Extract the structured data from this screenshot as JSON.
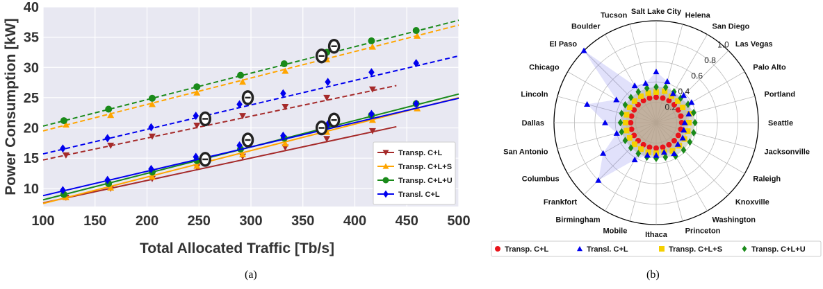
{
  "captions": {
    "a": "(a)",
    "b": "(b)"
  },
  "chart_data": [
    {
      "type": "line",
      "title": "",
      "xlabel": "Total Allocated Traffic [Tb/s]",
      "ylabel": "Power Consumption [kW]",
      "xlim": [
        100,
        500
      ],
      "ylim": [
        7,
        40
      ],
      "xticks": [
        100,
        150,
        200,
        250,
        300,
        350,
        400,
        450,
        500
      ],
      "yticks": [
        10,
        15,
        20,
        25,
        30,
        35,
        40
      ],
      "grid": true,
      "legend_position": "lower-right",
      "background": "#e8e8f2",
      "series": [
        {
          "name": "Transp. C+L",
          "color": "#a52a2a",
          "marker": "triangle-down",
          "style": "solid",
          "x": [
            100,
            440
          ],
          "y": [
            7.6,
            20.2
          ],
          "marker_x": [
            122,
            165,
            205,
            248,
            292,
            333,
            373,
            417
          ],
          "marker_y": [
            8.5,
            10.0,
            11.6,
            13.5,
            15.3,
            16.8,
            18.2,
            19.5
          ]
        },
        {
          "name": "Transp. C+L",
          "color": "#a52a2a",
          "marker": "triangle-down",
          "style": "dashed",
          "x": [
            100,
            440
          ],
          "y": [
            14.7,
            27.0
          ],
          "marker_x": [
            122,
            165,
            205,
            248,
            292,
            333,
            373,
            417
          ],
          "marker_y": [
            15.5,
            17.1,
            18.6,
            20.4,
            22.0,
            23.5,
            25.0,
            26.4
          ]
        },
        {
          "name": "Transp. C+L+S",
          "color": "#ffa500",
          "marker": "triangle-up",
          "style": "solid",
          "x": [
            100,
            500
          ],
          "y": [
            7.5,
            25.0
          ],
          "marker_x": [
            122,
            165,
            205,
            248,
            292,
            333,
            373,
            417,
            460
          ],
          "marker_y": [
            8.5,
            10.1,
            11.9,
            13.7,
            15.6,
            17.4,
            19.3,
            21.3,
            23.2
          ]
        },
        {
          "name": "Transp. C+L+S",
          "color": "#ffa500",
          "marker": "triangle-up",
          "style": "dashed",
          "x": [
            100,
            500
          ],
          "y": [
            19.5,
            37.0
          ],
          "marker_x": [
            122,
            165,
            205,
            248,
            292,
            333,
            373,
            417,
            460
          ],
          "marker_y": [
            20.5,
            22.1,
            23.9,
            25.8,
            27.6,
            29.4,
            31.3,
            33.4,
            35.2
          ]
        },
        {
          "name": "Transp. C+L+U",
          "color": "#1a8a1a",
          "marker": "circle",
          "style": "solid",
          "x": [
            100,
            500
          ],
          "y": [
            8.1,
            25.6
          ],
          "marker_x": [
            120,
            163,
            205,
            248,
            290,
            332,
            373,
            416,
            459
          ],
          "marker_y": [
            9.0,
            10.8,
            12.7,
            14.6,
            16.5,
            18.3,
            20.2,
            22.1,
            24.0
          ]
        },
        {
          "name": "Transp. C+L+U",
          "color": "#1a8a1a",
          "marker": "circle",
          "style": "dashed",
          "x": [
            100,
            500
          ],
          "y": [
            20.3,
            37.8
          ],
          "marker_x": [
            120,
            163,
            205,
            248,
            290,
            332,
            373,
            416,
            459
          ],
          "marker_y": [
            21.2,
            23.1,
            24.9,
            26.8,
            28.7,
            30.6,
            32.5,
            34.4,
            36.1
          ]
        },
        {
          "name": "Transl. C+L",
          "color": "#0000ee",
          "marker": "diamond",
          "style": "solid",
          "x": [
            100,
            500
          ],
          "y": [
            8.8,
            24.9
          ],
          "marker_x": [
            119,
            162,
            204,
            247,
            289,
            331,
            374,
            416,
            459
          ],
          "marker_y": [
            9.7,
            11.4,
            13.2,
            15.2,
            17.1,
            18.7,
            20.6,
            22.3,
            24.0
          ]
        },
        {
          "name": "Transl. C+L",
          "color": "#0000ee",
          "marker": "diamond",
          "style": "dashed",
          "x": [
            100,
            500
          ],
          "y": [
            15.7,
            31.9
          ],
          "marker_x": [
            119,
            162,
            204,
            247,
            289,
            331,
            374,
            416,
            459
          ],
          "marker_y": [
            16.6,
            18.3,
            20.1,
            22.0,
            23.9,
            25.7,
            27.6,
            29.2,
            30.7
          ]
        }
      ],
      "annotations": [
        {
          "label": "⊖",
          "x": 256,
          "y": 21.5
        },
        {
          "label": "⊖",
          "x": 297,
          "y": 25.0
        },
        {
          "label": "⊖",
          "x": 256,
          "y": 14.8
        },
        {
          "label": "⊖",
          "x": 297,
          "y": 18.0
        },
        {
          "label": "⊖",
          "x": 368,
          "y": 31.9
        },
        {
          "label": "⊖",
          "x": 380,
          "y": 33.5
        },
        {
          "label": "⊖",
          "x": 368,
          "y": 20.0
        },
        {
          "label": "⊖",
          "x": 380,
          "y": 21.3
        }
      ],
      "legend": [
        "Transp. C+L",
        "Transp. C+L+S",
        "Transp. C+L+U",
        "Transl. C+L"
      ]
    },
    {
      "type": "radar",
      "title": "",
      "categories": [
        "Seattle",
        "Portland",
        "Palo Alto",
        "Las Vegas",
        "San Diego",
        "Helena",
        "Salt Lake City",
        "Tucson",
        "Boulder",
        "El Paso",
        "Chicago",
        "Lincoln",
        "Dallas",
        "San Antonio",
        "Columbus",
        "Frankfort",
        "Birmingham",
        "Mobile",
        "Ithaca",
        "Princeton",
        "Washington",
        "Knoxville",
        "Raleigh",
        "Jacksonville"
      ],
      "rlim": [
        0,
        1.0
      ],
      "rticks": [
        0.2,
        0.4,
        0.6,
        0.8,
        1.0
      ],
      "grid": true,
      "legend_position": "bottom",
      "series": [
        {
          "name": "Transp. C+L",
          "color": "#e8141b",
          "marker": "circle",
          "values": [
            0.25,
            0.25,
            0.25,
            0.25,
            0.25,
            0.25,
            0.25,
            0.25,
            0.25,
            0.25,
            0.25,
            0.25,
            0.25,
            0.25,
            0.25,
            0.25,
            0.25,
            0.25,
            0.25,
            0.25,
            0.25,
            0.25,
            0.25,
            0.25
          ]
        },
        {
          "name": "Transl. C+L",
          "color": "#0000ee",
          "marker": "triangle-up",
          "values": [
            0.28,
            0.33,
            0.4,
            0.38,
            0.33,
            0.42,
            0.5,
            0.4,
            0.42,
            1.0,
            0.45,
            0.7,
            0.5,
            0.4,
            0.6,
            0.8,
            0.42,
            0.33,
            0.32,
            0.3,
            0.35,
            0.3,
            0.3,
            0.28
          ]
        },
        {
          "name": "Transp. C+L+S",
          "color": "#f5d000",
          "marker": "square",
          "values": [
            0.32,
            0.34,
            0.3,
            0.3,
            0.3,
            0.32,
            0.3,
            0.3,
            0.3,
            0.3,
            0.3,
            0.3,
            0.3,
            0.3,
            0.3,
            0.3,
            0.3,
            0.3,
            0.3,
            0.3,
            0.32,
            0.32,
            0.32,
            0.32
          ]
        },
        {
          "name": "Transp. C+L+U",
          "color": "#1a8a1a",
          "marker": "diamond",
          "values": [
            0.38,
            0.38,
            0.36,
            0.34,
            0.35,
            0.36,
            0.35,
            0.35,
            0.35,
            0.35,
            0.35,
            0.35,
            0.35,
            0.35,
            0.35,
            0.35,
            0.35,
            0.35,
            0.35,
            0.35,
            0.38,
            0.38,
            0.38,
            0.38
          ]
        }
      ],
      "legend": [
        "Transp. C+L",
        "Transl. C+L",
        "Transp. C+L+S",
        "Transp. C+L+U"
      ]
    }
  ]
}
